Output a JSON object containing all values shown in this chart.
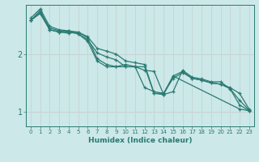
{
  "xlabel": "Humidex (Indice chaleur)",
  "ylabel": "",
  "background_color": "#cce8e8",
  "grid_color": "#add4d4",
  "line_color": "#2a7a72",
  "xlim": [
    -0.5,
    23.5
  ],
  "ylim": [
    0.75,
    2.85
  ],
  "yticks": [
    1,
    2
  ],
  "xtick_labels": [
    "0",
    "1",
    "2",
    "3",
    "4",
    "5",
    "6",
    "7",
    "8",
    "9",
    "10",
    "11",
    "12",
    "13",
    "14",
    "15",
    "16",
    "17",
    "18",
    "19",
    "20",
    "21",
    "22",
    "23"
  ],
  "xticks": [
    0,
    1,
    2,
    3,
    4,
    5,
    6,
    7,
    8,
    9,
    10,
    11,
    12,
    13,
    14,
    15,
    16,
    17,
    18,
    19,
    20,
    21,
    22,
    23
  ],
  "series": [
    {
      "x": [
        0,
        1,
        2,
        3,
        4,
        5,
        6,
        7,
        8,
        9,
        10,
        11,
        12,
        13,
        14,
        15,
        16,
        17,
        18,
        19,
        20,
        21,
        22,
        23
      ],
      "y": [
        2.62,
        2.78,
        2.48,
        2.42,
        2.4,
        2.38,
        2.3,
        2.1,
        2.05,
        2.0,
        1.88,
        1.85,
        1.82,
        1.32,
        1.3,
        1.35,
        1.72,
        1.6,
        1.57,
        1.52,
        1.52,
        1.4,
        1.12,
        1.02
      ]
    },
    {
      "x": [
        0,
        1,
        2,
        3,
        4,
        5,
        6,
        7,
        8,
        9,
        10,
        11,
        12,
        13,
        14,
        15,
        16,
        17,
        18,
        19,
        20,
        21,
        22,
        23
      ],
      "y": [
        2.58,
        2.75,
        2.42,
        2.38,
        2.36,
        2.38,
        2.28,
        1.92,
        1.82,
        1.78,
        1.82,
        1.78,
        1.42,
        1.35,
        1.32,
        1.58,
        1.68,
        1.58,
        1.55,
        1.5,
        1.48,
        1.42,
        1.32,
        1.05
      ]
    },
    {
      "x": [
        0,
        1,
        2,
        3,
        4,
        5,
        6,
        7,
        8,
        9,
        10,
        11,
        12,
        13,
        14,
        15,
        16,
        17,
        18,
        19,
        20,
        21,
        22,
        23
      ],
      "y": [
        2.58,
        2.72,
        2.45,
        2.4,
        2.38,
        2.35,
        2.25,
        2.02,
        1.95,
        1.9,
        1.78,
        1.78,
        1.78,
        1.32,
        1.32,
        1.62,
        1.7,
        1.58,
        1.55,
        1.5,
        1.48,
        1.4,
        1.2,
        1.03
      ]
    },
    {
      "x": [
        0,
        1,
        2,
        3,
        4,
        5,
        6,
        7,
        8,
        9,
        10,
        11,
        12,
        13,
        14,
        15,
        22,
        23
      ],
      "y": [
        2.58,
        2.7,
        2.42,
        2.38,
        2.4,
        2.35,
        2.22,
        1.88,
        1.78,
        1.78,
        1.78,
        1.78,
        1.72,
        1.7,
        1.3,
        1.62,
        1.05,
        1.02
      ]
    }
  ]
}
